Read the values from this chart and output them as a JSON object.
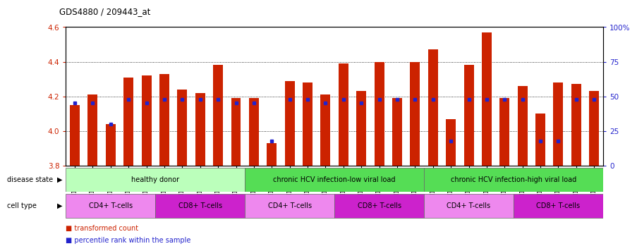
{
  "title": "GDS4880 / 209443_at",
  "samples": [
    "GSM1210739",
    "GSM1210740",
    "GSM1210741",
    "GSM1210742",
    "GSM1210743",
    "GSM1210754",
    "GSM1210755",
    "GSM1210756",
    "GSM1210757",
    "GSM1210758",
    "GSM1210745",
    "GSM1210750",
    "GSM1210751",
    "GSM1210752",
    "GSM1210753",
    "GSM1210760",
    "GSM1210765",
    "GSM1210766",
    "GSM1210767",
    "GSM1210768",
    "GSM1210744",
    "GSM1210746",
    "GSM1210747",
    "GSM1210748",
    "GSM1210749",
    "GSM1210759",
    "GSM1210761",
    "GSM1210762",
    "GSM1210763",
    "GSM1210764"
  ],
  "bar_values": [
    4.15,
    4.21,
    4.04,
    4.31,
    4.32,
    4.33,
    4.24,
    4.22,
    4.38,
    4.19,
    4.19,
    3.93,
    4.29,
    4.28,
    4.21,
    4.39,
    4.23,
    4.4,
    4.19,
    4.4,
    4.47,
    4.07,
    4.38,
    4.57,
    4.19,
    4.26,
    4.1,
    4.28,
    4.27,
    4.23
  ],
  "percentile_values": [
    45,
    45,
    30,
    48,
    45,
    48,
    48,
    48,
    48,
    45,
    45,
    18,
    48,
    48,
    45,
    48,
    45,
    48,
    48,
    48,
    48,
    18,
    48,
    48,
    48,
    48,
    18,
    18,
    48,
    48
  ],
  "ymin": 3.8,
  "ymax": 4.6,
  "yticks": [
    3.8,
    4.0,
    4.2,
    4.4,
    4.6
  ],
  "right_yticks": [
    0,
    25,
    50,
    75,
    100
  ],
  "right_ytick_labels": [
    "0",
    "25",
    "50",
    "75",
    "100%"
  ],
  "bar_color": "#cc2200",
  "dot_color": "#2222cc",
  "bg_color": "#ffffff",
  "disease_state_groups": [
    {
      "label": "healthy donor",
      "start": 0,
      "end": 10,
      "color": "#99ee99"
    },
    {
      "label": "chronic HCV infection-low viral load",
      "start": 10,
      "end": 20,
      "color": "#55cc55"
    },
    {
      "label": "chronic HCV infection-high viral load",
      "start": 20,
      "end": 30,
      "color": "#55cc55"
    }
  ],
  "cell_type_groups": [
    {
      "label": "CD4+ T-cells",
      "start": 0,
      "end": 5,
      "color": "#ee88ee"
    },
    {
      "label": "CD8+ T-cells",
      "start": 5,
      "end": 10,
      "color": "#cc22cc"
    },
    {
      "label": "CD4+ T-cells",
      "start": 10,
      "end": 15,
      "color": "#ee88ee"
    },
    {
      "label": "CD8+ T-cells",
      "start": 15,
      "end": 20,
      "color": "#cc22cc"
    },
    {
      "label": "CD4+ T-cells",
      "start": 20,
      "end": 25,
      "color": "#ee88ee"
    },
    {
      "label": "CD8+ T-cells",
      "start": 25,
      "end": 30,
      "color": "#cc22cc"
    }
  ]
}
